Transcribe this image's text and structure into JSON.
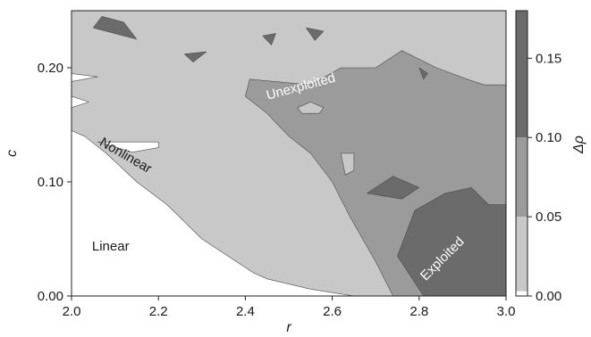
{
  "chart_data": {
    "type": "heatmap",
    "title": "",
    "xlabel": "r",
    "ylabel": "c",
    "xlim": [
      2.0,
      3.0
    ],
    "ylim": [
      0.0,
      0.25
    ],
    "xticks": [
      2.0,
      2.2,
      2.4,
      2.6,
      2.8,
      3.0
    ],
    "xtick_labels": [
      "2.0",
      "2.2",
      "2.4",
      "2.6",
      "2.8",
      "3.0"
    ],
    "yticks": [
      0.0,
      0.1,
      0.2
    ],
    "ytick_labels": [
      "0.00",
      "0.10",
      "0.20"
    ],
    "colorbar": {
      "label": "Δρ",
      "range": [
        0.0,
        0.18
      ],
      "ticks": [
        0.0,
        0.05,
        0.1,
        0.15
      ],
      "tick_labels": [
        "0.00",
        "0.05",
        "0.10",
        "0.15"
      ],
      "levels": [
        {
          "min": 0.0,
          "max": 0.0,
          "color": "#ffffff"
        },
        {
          "min": 0.0,
          "max": 0.05,
          "color": "#c8c8c8"
        },
        {
          "min": 0.05,
          "max": 0.1,
          "color": "#9b9b9b"
        },
        {
          "min": 0.1,
          "max": 0.18,
          "color": "#6b6b6b"
        }
      ]
    },
    "regions": [
      {
        "level": 1,
        "name": "unexploited-region",
        "points": [
          [
            2.0,
            0.25
          ],
          [
            3.0,
            0.25
          ],
          [
            3.0,
            0.0
          ],
          [
            2.86,
            0.0
          ],
          [
            2.77,
            0.0
          ],
          [
            2.65,
            0.0
          ],
          [
            2.55,
            0.006
          ],
          [
            2.45,
            0.015
          ],
          [
            2.42,
            0.02
          ],
          [
            2.36,
            0.035
          ],
          [
            2.3,
            0.05
          ],
          [
            2.22,
            0.08
          ],
          [
            2.15,
            0.1
          ],
          [
            2.08,
            0.125
          ],
          [
            2.03,
            0.14
          ],
          [
            2.0,
            0.145
          ]
        ]
      },
      {
        "level": 0,
        "name": "nonlinear-notch",
        "points": [
          [
            2.0,
            0.175
          ],
          [
            2.04,
            0.17
          ],
          [
            2.0,
            0.165
          ]
        ]
      },
      {
        "level": 0,
        "name": "nonlinear-notch",
        "points": [
          [
            2.0,
            0.195
          ],
          [
            2.06,
            0.192
          ],
          [
            2.0,
            0.188
          ]
        ]
      },
      {
        "level": 0,
        "name": "nonlinear-notch",
        "points": [
          [
            2.06,
            0.135
          ],
          [
            2.2,
            0.135
          ],
          [
            2.2,
            0.13
          ],
          [
            2.14,
            0.126
          ]
        ]
      },
      {
        "level": 2,
        "name": "mid-region",
        "points": [
          [
            2.41,
            0.19
          ],
          [
            2.55,
            0.185
          ],
          [
            2.62,
            0.2
          ],
          [
            2.7,
            0.2
          ],
          [
            2.76,
            0.215
          ],
          [
            2.84,
            0.2
          ],
          [
            2.91,
            0.19
          ],
          [
            2.95,
            0.185
          ],
          [
            3.0,
            0.185
          ],
          [
            3.0,
            0.0
          ],
          [
            2.74,
            0.0
          ],
          [
            2.7,
            0.03
          ],
          [
            2.64,
            0.07
          ],
          [
            2.6,
            0.1
          ],
          [
            2.55,
            0.125
          ],
          [
            2.5,
            0.14
          ],
          [
            2.45,
            0.16
          ],
          [
            2.4,
            0.175
          ]
        ]
      },
      {
        "level": 1,
        "name": "light-island",
        "points": [
          [
            2.53,
            0.16
          ],
          [
            2.57,
            0.16
          ],
          [
            2.58,
            0.165
          ],
          [
            2.55,
            0.17
          ],
          [
            2.52,
            0.165
          ]
        ]
      },
      {
        "level": 1,
        "name": "light-island",
        "points": [
          [
            2.62,
            0.125
          ],
          [
            2.65,
            0.125
          ],
          [
            2.65,
            0.11
          ],
          [
            2.63,
            0.106
          ]
        ]
      },
      {
        "level": 3,
        "name": "exploited-region",
        "points": [
          [
            2.75,
            0.035
          ],
          [
            2.79,
            0.075
          ],
          [
            2.86,
            0.09
          ],
          [
            2.92,
            0.095
          ],
          [
            2.96,
            0.08
          ],
          [
            3.0,
            0.08
          ],
          [
            3.0,
            0.0
          ],
          [
            2.81,
            0.0
          ]
        ]
      },
      {
        "level": 3,
        "name": "dark-island",
        "points": [
          [
            2.68,
            0.09
          ],
          [
            2.74,
            0.105
          ],
          [
            2.8,
            0.095
          ],
          [
            2.76,
            0.085
          ]
        ]
      },
      {
        "level": 3,
        "name": "dark-island",
        "points": [
          [
            2.05,
            0.235
          ],
          [
            2.1,
            0.23
          ],
          [
            2.15,
            0.225
          ],
          [
            2.12,
            0.24
          ],
          [
            2.07,
            0.245
          ]
        ]
      },
      {
        "level": 3,
        "name": "dark-island",
        "points": [
          [
            2.44,
            0.228
          ],
          [
            2.47,
            0.23
          ],
          [
            2.46,
            0.22
          ]
        ]
      },
      {
        "level": 3,
        "name": "dark-island",
        "points": [
          [
            2.54,
            0.235
          ],
          [
            2.58,
            0.232
          ],
          [
            2.56,
            0.224
          ]
        ]
      },
      {
        "level": 3,
        "name": "dark-island",
        "points": [
          [
            2.8,
            0.2
          ],
          [
            2.82,
            0.195
          ],
          [
            2.81,
            0.19
          ]
        ]
      },
      {
        "level": 3,
        "name": "dark-island",
        "points": [
          [
            2.26,
            0.212
          ],
          [
            2.31,
            0.214
          ],
          [
            2.28,
            0.205
          ]
        ]
      }
    ],
    "region_labels": [
      {
        "text": "Unexploited",
        "x": 2.53,
        "y": 0.18,
        "rotate": -15,
        "color": "#ffffff"
      },
      {
        "text": "Nonlinear",
        "x": 2.12,
        "y": 0.12,
        "rotate": 30,
        "color": "#1a1a1a"
      },
      {
        "text": "Linear",
        "x": 2.09,
        "y": 0.04,
        "rotate": 0,
        "color": "#1a1a1a"
      },
      {
        "text": "Exploited",
        "x": 2.86,
        "y": 0.03,
        "rotate": -45,
        "color": "#ffffff"
      }
    ],
    "grid": false
  }
}
